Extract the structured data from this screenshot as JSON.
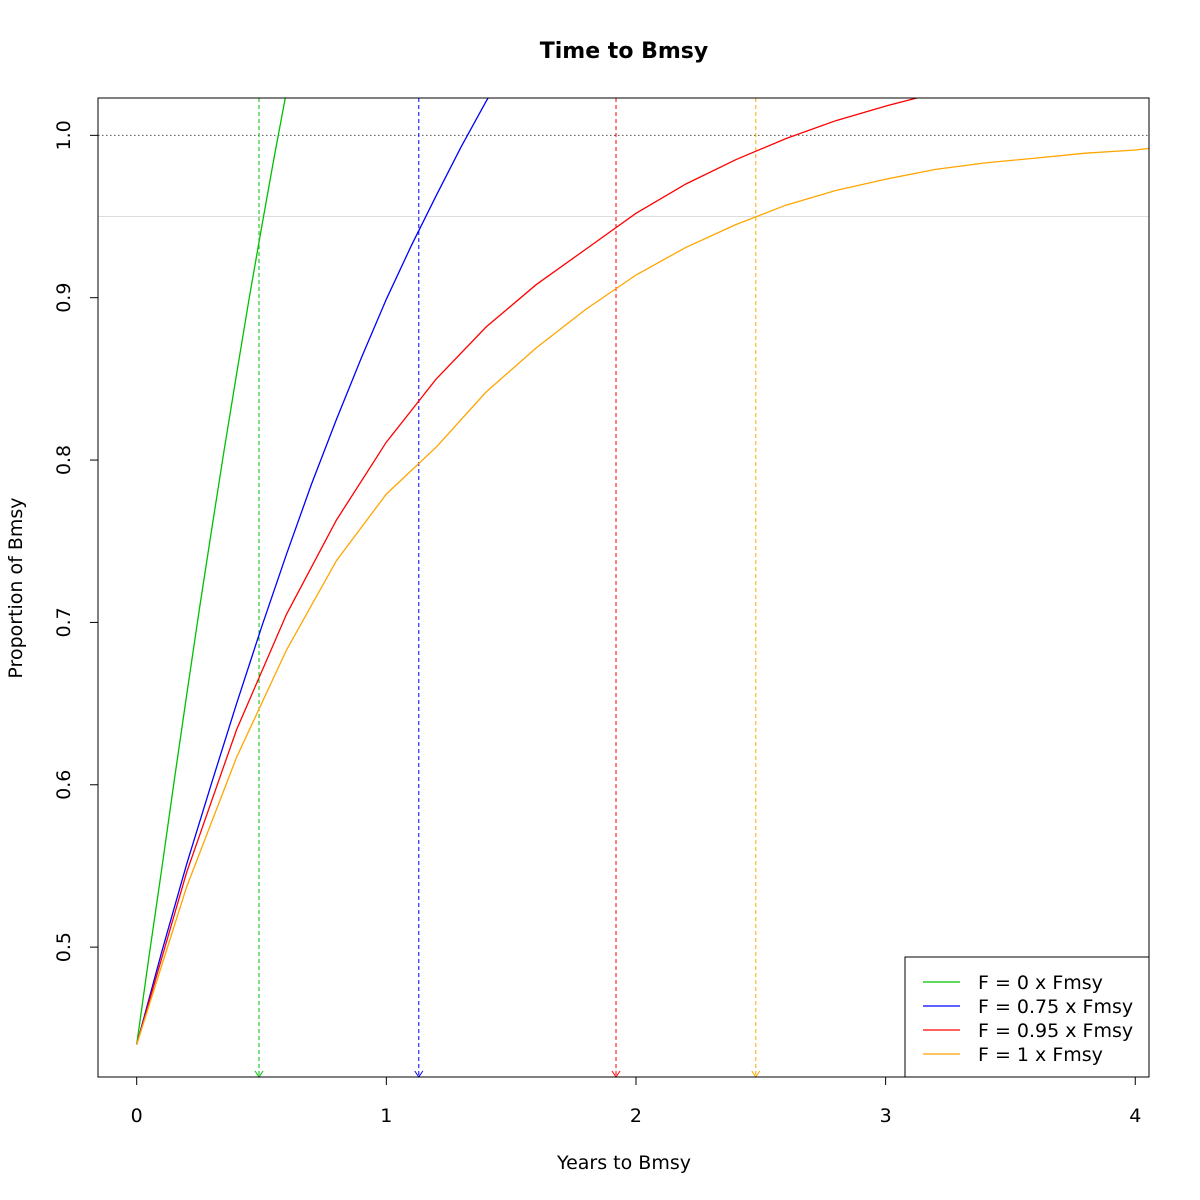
{
  "chart_data": {
    "type": "line",
    "title": "Time to Bmsy",
    "xlabel": "Years to Bmsy",
    "ylabel": "Proportion of Bmsy",
    "xlim": [
      -0.155,
      4.055
    ],
    "ylim": [
      0.42,
      1.023
    ],
    "xticks": [
      0,
      1,
      2,
      3,
      4
    ],
    "yticks": [
      0.5,
      0.6,
      0.7,
      0.8,
      0.9,
      1.0
    ],
    "xtick_labels": [
      "0",
      "1",
      "2",
      "3",
      "4"
    ],
    "ytick_labels": [
      "0.5",
      "0.6",
      "0.7",
      "0.8",
      "0.9",
      "1.0"
    ],
    "reference_lines": [
      {
        "y": 1.0,
        "style": "dotted",
        "color": "#555555"
      },
      {
        "y": 0.95,
        "style": "solid",
        "color": "#dddddd"
      }
    ],
    "legend_position": "bottom-right",
    "series": [
      {
        "name": "F = 0 x Fmsy",
        "color": "#00c000",
        "marker_x": 0.49,
        "x": [
          0,
          0.05,
          0.1,
          0.15,
          0.2,
          0.25,
          0.3,
          0.35,
          0.4,
          0.45,
          0.5,
          0.55,
          0.6,
          0.65
        ],
        "y": [
          0.44,
          0.495,
          0.548,
          0.602,
          0.655,
          0.707,
          0.757,
          0.806,
          0.853,
          0.899,
          0.943,
          0.986,
          1.027,
          1.066
        ]
      },
      {
        "name": "F = 0.75 x Fmsy",
        "color": "#0000ff",
        "marker_x": 1.13,
        "x": [
          0,
          0.1,
          0.2,
          0.3,
          0.4,
          0.5,
          0.6,
          0.7,
          0.8,
          0.9,
          1.0,
          1.1,
          1.2,
          1.3,
          1.4,
          1.5
        ],
        "y": [
          0.44,
          0.497,
          0.551,
          0.601,
          0.65,
          0.697,
          0.742,
          0.785,
          0.825,
          0.863,
          0.899,
          0.932,
          0.963,
          0.993,
          1.021,
          1.047
        ]
      },
      {
        "name": "F = 0.95 x Fmsy",
        "color": "#ff0000",
        "marker_x": 1.92,
        "x": [
          0,
          0.2,
          0.4,
          0.6,
          0.8,
          1.0,
          1.2,
          1.4,
          1.6,
          1.8,
          2.0,
          2.2,
          2.4,
          2.6,
          2.8,
          3.0,
          3.2
        ],
        "y": [
          0.44,
          0.546,
          0.634,
          0.705,
          0.763,
          0.811,
          0.85,
          0.882,
          0.908,
          0.93,
          0.952,
          0.97,
          0.985,
          0.998,
          1.009,
          1.018,
          1.026
        ]
      },
      {
        "name": "F = 1 x Fmsy",
        "color": "#ffa500",
        "marker_x": 2.48,
        "x": [
          0,
          0.2,
          0.4,
          0.6,
          0.8,
          1.0,
          1.2,
          1.4,
          1.6,
          1.8,
          2.0,
          2.2,
          2.4,
          2.6,
          2.8,
          3.0,
          3.2,
          3.4,
          3.6,
          3.8,
          4.0,
          4.06
        ],
        "y": [
          0.44,
          0.537,
          0.617,
          0.683,
          0.738,
          0.779,
          0.808,
          0.842,
          0.869,
          0.893,
          0.914,
          0.931,
          0.945,
          0.957,
          0.966,
          0.973,
          0.979,
          0.983,
          0.986,
          0.989,
          0.991,
          0.992
        ]
      }
    ]
  }
}
